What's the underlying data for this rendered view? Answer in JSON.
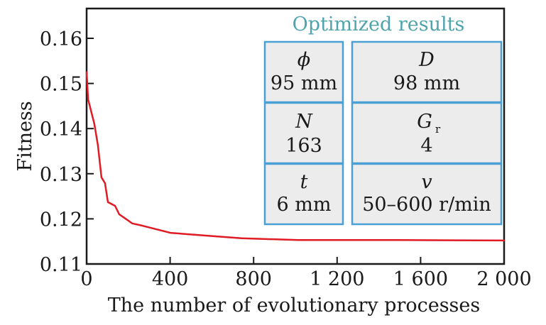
{
  "chart_data": {
    "type": "line",
    "title": "",
    "xlabel": "The number of evolutionary processes",
    "ylabel": "Fitness",
    "xlim": [
      0,
      2000
    ],
    "ylim": [
      0.11,
      0.165
    ],
    "x_ticks": [
      0,
      400,
      800,
      1200,
      1600,
      2000
    ],
    "x_tick_labels": [
      "0",
      "400",
      "800",
      "1 200",
      "1 600",
      "2 000"
    ],
    "y_ticks": [
      0.11,
      0.12,
      0.13,
      0.14,
      0.15,
      0.16
    ],
    "y_tick_labels": [
      "0.11",
      "0.12",
      "0.13",
      "0.14",
      "0.15",
      "0.16"
    ],
    "grid": false,
    "series": [
      {
        "name": "Fitness",
        "color": "#e01b24",
        "x": [
          0,
          7,
          37,
          54,
          71,
          88,
          102,
          136,
          156,
          197,
          218,
          265,
          401,
          537,
          741,
          1014,
          1490,
          2000
        ],
        "y": [
          0.1525,
          0.1465,
          0.141,
          0.1363,
          0.1292,
          0.1279,
          0.1237,
          0.1229,
          0.121,
          0.1197,
          0.119,
          0.1185,
          0.1169,
          0.1164,
          0.1157,
          0.1153,
          0.1153,
          0.1152
        ]
      }
    ],
    "annotations": {
      "inset_title": "Optimized results",
      "inset_title_color": "#4fa3ad",
      "cell_border_color": "#4a9fd4",
      "cell_fill_color": "#ececec",
      "cells": [
        {
          "symbol": "ϕ",
          "subscript": "",
          "value": "95 mm"
        },
        {
          "symbol": "D",
          "subscript": "",
          "value": "98 mm"
        },
        {
          "symbol": "N",
          "subscript": "",
          "value": "163"
        },
        {
          "symbol": "G",
          "subscript": "r",
          "value": "4"
        },
        {
          "symbol": "t",
          "subscript": "",
          "value": "6 mm"
        },
        {
          "symbol": "v",
          "subscript": "",
          "value": "50–600 r/min"
        }
      ]
    }
  }
}
